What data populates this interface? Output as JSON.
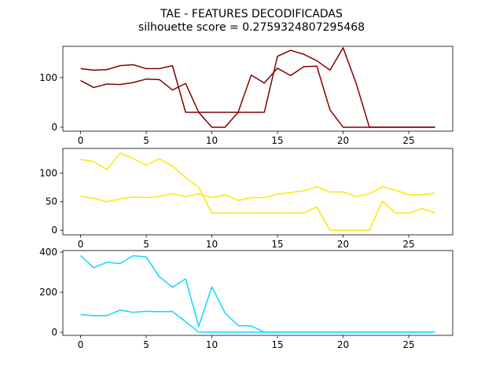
{
  "figure": {
    "title": "TAE - FEATURES DECODIFICADAS",
    "subtitle": "silhouette score = 0.2759324807295468"
  },
  "chart_data": [
    {
      "type": "line",
      "x": [
        0,
        1,
        2,
        3,
        4,
        5,
        6,
        7,
        8,
        9,
        10,
        11,
        12,
        13,
        14,
        15,
        16,
        17,
        18,
        19,
        20,
        21,
        22,
        23,
        24,
        25,
        26,
        27
      ],
      "xlim": [
        -1.35,
        28.35
      ],
      "ylim": [
        -8,
        163
      ],
      "xticks": [
        0,
        5,
        10,
        15,
        20,
        25
      ],
      "yticks": [
        0,
        100
      ],
      "color": "#800000",
      "series": [
        {
          "values": [
            118,
            115,
            116,
            124,
            126,
            118,
            118,
            124,
            30,
            30,
            30,
            30,
            30,
            30,
            30,
            143,
            155,
            147,
            134,
            115,
            160,
            88,
            0,
            0,
            0,
            0,
            0,
            0
          ]
        },
        {
          "values": [
            94,
            80,
            87,
            86,
            90,
            97,
            96,
            75,
            88,
            30,
            0,
            0,
            30,
            105,
            89,
            119,
            104,
            122,
            123,
            35,
            0,
            0,
            0,
            0,
            0,
            0,
            0,
            0
          ]
        }
      ]
    },
    {
      "type": "line",
      "x": [
        0,
        1,
        2,
        3,
        4,
        5,
        6,
        7,
        8,
        9,
        10,
        11,
        12,
        13,
        14,
        15,
        16,
        17,
        18,
        19,
        20,
        21,
        22,
        23,
        24,
        25,
        26,
        27
      ],
      "xlim": [
        -1.35,
        28.35
      ],
      "ylim": [
        -8,
        143
      ],
      "xticks": [
        0,
        5,
        10,
        15,
        20,
        25
      ],
      "yticks": [
        0,
        50,
        100
      ],
      "color": "#ffe600",
      "series": [
        {
          "values": [
            124,
            120,
            106,
            135,
            125,
            114,
            125,
            112,
            92,
            75,
            30,
            30,
            30,
            30,
            30,
            30,
            30,
            30,
            41,
            0,
            0,
            0,
            0,
            51,
            30,
            30,
            38,
            30
          ]
        },
        {
          "values": [
            59,
            56,
            50,
            55,
            58,
            57,
            59,
            64,
            59,
            64,
            57,
            62,
            52,
            57,
            57,
            63,
            66,
            69,
            76,
            67,
            67,
            59,
            64,
            76,
            70,
            62,
            62,
            65
          ]
        }
      ]
    },
    {
      "type": "line",
      "x": [
        0,
        1,
        2,
        3,
        4,
        5,
        6,
        7,
        8,
        9,
        10,
        11,
        12,
        13,
        14,
        15,
        16,
        17,
        18,
        19,
        20,
        21,
        22,
        23,
        24,
        25,
        26,
        27
      ],
      "xlim": [
        -1.35,
        28.35
      ],
      "ylim": [
        -15,
        408
      ],
      "xticks": [
        0,
        5,
        10,
        15,
        20,
        25
      ],
      "yticks": [
        0,
        200,
        400
      ],
      "color": "#11d6ff",
      "series": [
        {
          "values": [
            383,
            322,
            350,
            343,
            382,
            376,
            277,
            225,
            267,
            30,
            227,
            98,
            34,
            32,
            1,
            1,
            1,
            1,
            1,
            1,
            1,
            1,
            1,
            1,
            1,
            1,
            1,
            1
          ]
        },
        {
          "values": [
            89,
            83,
            83,
            111,
            100,
            105,
            103,
            104,
            53,
            1,
            1,
            1,
            1,
            1,
            1,
            1,
            1,
            1,
            1,
            1,
            1,
            1,
            1,
            1,
            1,
            1,
            1,
            1
          ]
        }
      ]
    }
  ]
}
